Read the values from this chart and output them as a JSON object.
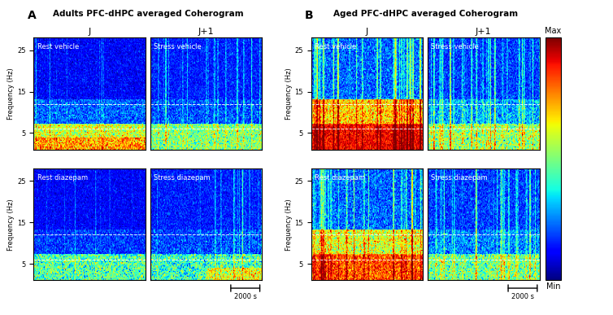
{
  "title_A": "Adults PFC-dHPC averaged Coherogram",
  "title_B": "Aged PFC-dHPC averaged Coherogram",
  "label_A": "A",
  "label_B": "B",
  "col_labels": [
    "J",
    "J+1"
  ],
  "panel_A_labels": [
    [
      "Rest vehicle",
      "Stress vehicle"
    ],
    [
      "Rest diazepam",
      "Stress diazepam"
    ]
  ],
  "panel_B_labels": [
    [
      "Rest vehicle",
      "Stress vehicle"
    ],
    [
      "Rest diazepam",
      "Stress diazepam"
    ]
  ],
  "freq_label": "Frequency (Hz)",
  "freq_ticks": [
    5,
    15,
    25
  ],
  "freq_min": 1,
  "freq_max": 28,
  "dline1": 6.0,
  "dline2": 12.0,
  "colorbar_label_max": "Max",
  "colorbar_label_min": "Min",
  "scalebar_label": "2000 s",
  "background": "#ffffff",
  "seed": 42
}
